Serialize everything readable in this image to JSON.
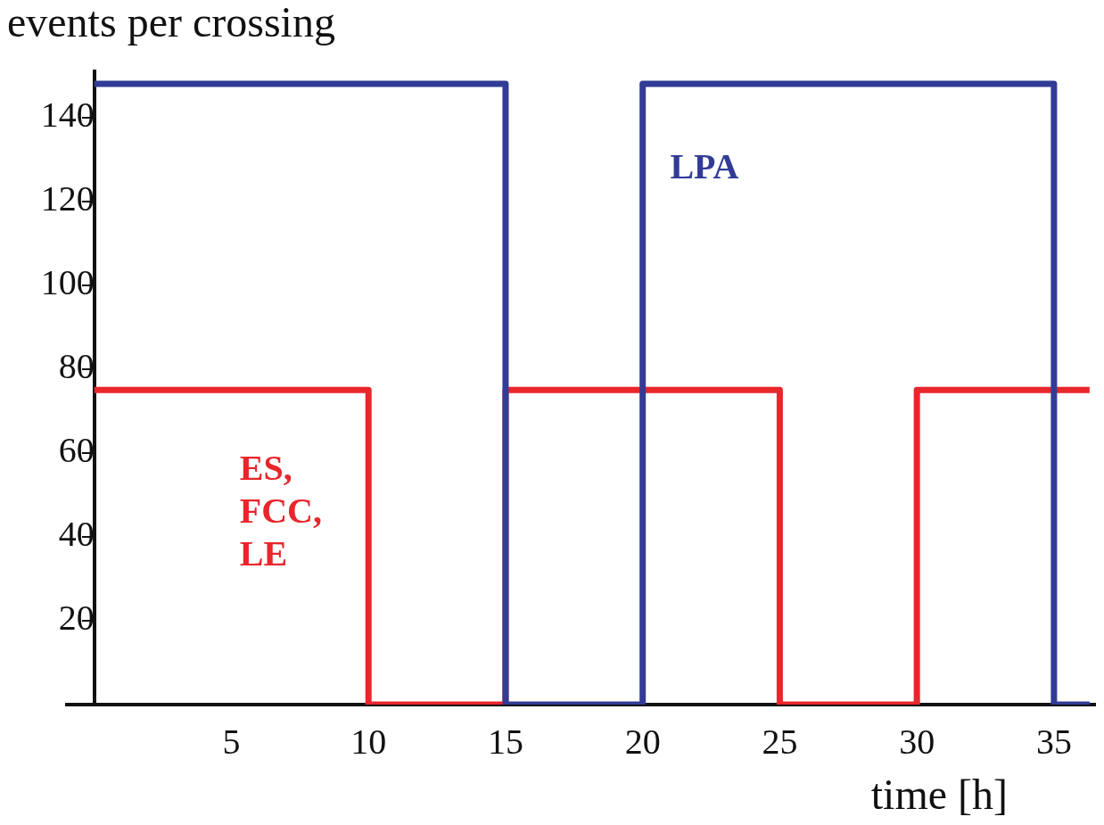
{
  "chart_data": {
    "type": "step",
    "xlabel": "time [h]",
    "ylabel": "events per crossing",
    "xlim": [
      -1,
      36.5
    ],
    "ylim": [
      0,
      151
    ],
    "xticks": [
      5,
      10,
      15,
      20,
      25,
      30,
      35
    ],
    "yticks": [
      20,
      40,
      60,
      80,
      100,
      120,
      140
    ],
    "grid": false,
    "legend": false,
    "series": [
      {
        "name": "LPA",
        "color": "#323c96",
        "x": [
          0,
          15,
          20,
          35,
          36.3
        ],
        "values": [
          148,
          0,
          148,
          0,
          0
        ]
      },
      {
        "name": "ES, FCC, LE",
        "color": "#e8262b",
        "x": [
          0,
          10,
          15,
          25,
          30,
          36.3
        ],
        "values": [
          75,
          0,
          75,
          0,
          75,
          75
        ]
      }
    ]
  }
}
